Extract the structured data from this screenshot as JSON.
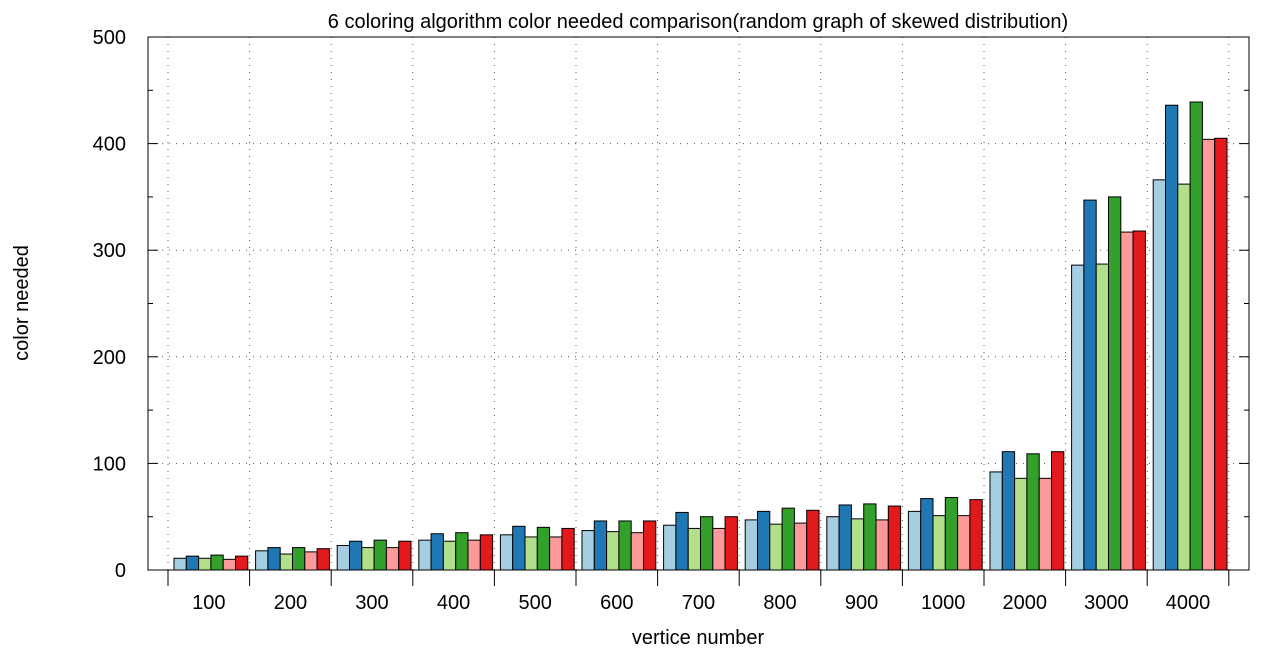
{
  "chart_data": {
    "type": "bar",
    "title": "6 coloring algorithm color needed comparison(random graph of skewed distribution)",
    "xlabel": "vertice number",
    "ylabel": "color needed",
    "ylim": [
      0,
      500
    ],
    "yticks": [
      "0",
      "100",
      "200",
      "300",
      "400",
      "500"
    ],
    "grid": true,
    "categories": [
      "100",
      "200",
      "300",
      "400",
      "500",
      "600",
      "700",
      "800",
      "900",
      "1000",
      "2000",
      "3000",
      "4000"
    ],
    "series": [
      {
        "color": "#a6cee3",
        "values": [
          11,
          18,
          23,
          28,
          33,
          37,
          42,
          47,
          50,
          55,
          92,
          286,
          366
        ]
      },
      {
        "color": "#1f78b4",
        "values": [
          13,
          21,
          27,
          34,
          41,
          46,
          54,
          55,
          61,
          67,
          111,
          347,
          436
        ]
      },
      {
        "color": "#b2df8a",
        "values": [
          11,
          15,
          21,
          27,
          31,
          36,
          39,
          43,
          48,
          51,
          86,
          287,
          362
        ]
      },
      {
        "color": "#33a02c",
        "values": [
          14,
          21,
          28,
          35,
          40,
          46,
          50,
          58,
          62,
          68,
          109,
          350,
          439
        ]
      },
      {
        "color": "#fb9a99",
        "values": [
          10,
          17,
          21,
          28,
          31,
          35,
          39,
          44,
          47,
          51,
          86,
          317,
          404
        ]
      },
      {
        "color": "#e31a1c",
        "values": [
          13,
          20,
          27,
          33,
          39,
          46,
          50,
          56,
          60,
          66,
          111,
          318,
          405
        ]
      }
    ]
  }
}
